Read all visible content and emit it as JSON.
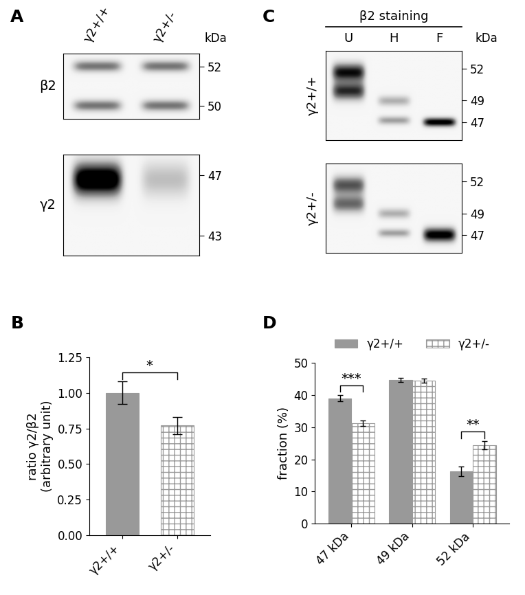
{
  "blots": [
    {
      "panel": "A",
      "columns": [
        "γ2+/+",
        "γ2+/-"
      ],
      "unit": "kDa",
      "rows": [
        {
          "label": "β2",
          "markers": [
            52,
            50
          ]
        },
        {
          "label": "γ2",
          "markers": [
            47,
            43
          ]
        }
      ]
    },
    {
      "panel": "C",
      "header": "β2 staining",
      "columns": [
        "U",
        "H",
        "F"
      ],
      "unit": "kDa",
      "rows": [
        {
          "label": "γ2+/+",
          "markers": [
            52,
            49,
            47
          ]
        },
        {
          "label": "γ2+/-",
          "markers": [
            52,
            49,
            47
          ]
        }
      ]
    }
  ],
  "chart_data": [
    {
      "panel": "B",
      "type": "bar",
      "categories": [
        "γ2+/+",
        "γ2+/-"
      ],
      "values": [
        1.0,
        0.77
      ],
      "errors": [
        0.08,
        0.06
      ],
      "colors": [
        "#999999",
        "#999999"
      ],
      "y_label": "ratio γ2/β2\n(arbitrary unit)",
      "ylim": [
        0,
        1.25
      ],
      "yticks": [
        {
          "value": 0,
          "label": "0.00"
        },
        {
          "value": 0.25,
          "label": "0.25"
        },
        {
          "value": 0.5,
          "label": "0.50"
        },
        {
          "value": 0.75,
          "label": "0.75"
        },
        {
          "value": 1.0,
          "label": "1.00"
        },
        {
          "value": 1.25,
          "label": "1.25"
        }
      ],
      "annotations": [
        {
          "text": "*",
          "categories": [
            "γ2+/+",
            "γ2+/-"
          ]
        }
      ]
    },
    {
      "panel": "D",
      "type": "bar",
      "categories": [
        "47 kDa",
        "49 kDa",
        "52 kDa"
      ],
      "series": [
        {
          "name": "γ2+/+",
          "color": "#999999",
          "values": [
            39.0,
            44.7,
            16.3
          ],
          "errors": [
            1.0,
            0.7,
            1.5
          ]
        },
        {
          "name": "γ2+/-",
          "color": "#999999",
          "values": [
            31.2,
            44.5,
            24.4
          ],
          "errors": [
            0.8,
            0.6,
            1.2
          ]
        }
      ],
      "y_label": "fraction (%)",
      "ylim": [
        0,
        50
      ],
      "yticks": [
        0,
        10,
        20,
        30,
        40,
        50
      ],
      "legend": "upper center",
      "annotations": [
        {
          "text": "***",
          "category": "47 kDa"
        },
        {
          "text": "**",
          "category": "52 kDa"
        }
      ]
    }
  ]
}
